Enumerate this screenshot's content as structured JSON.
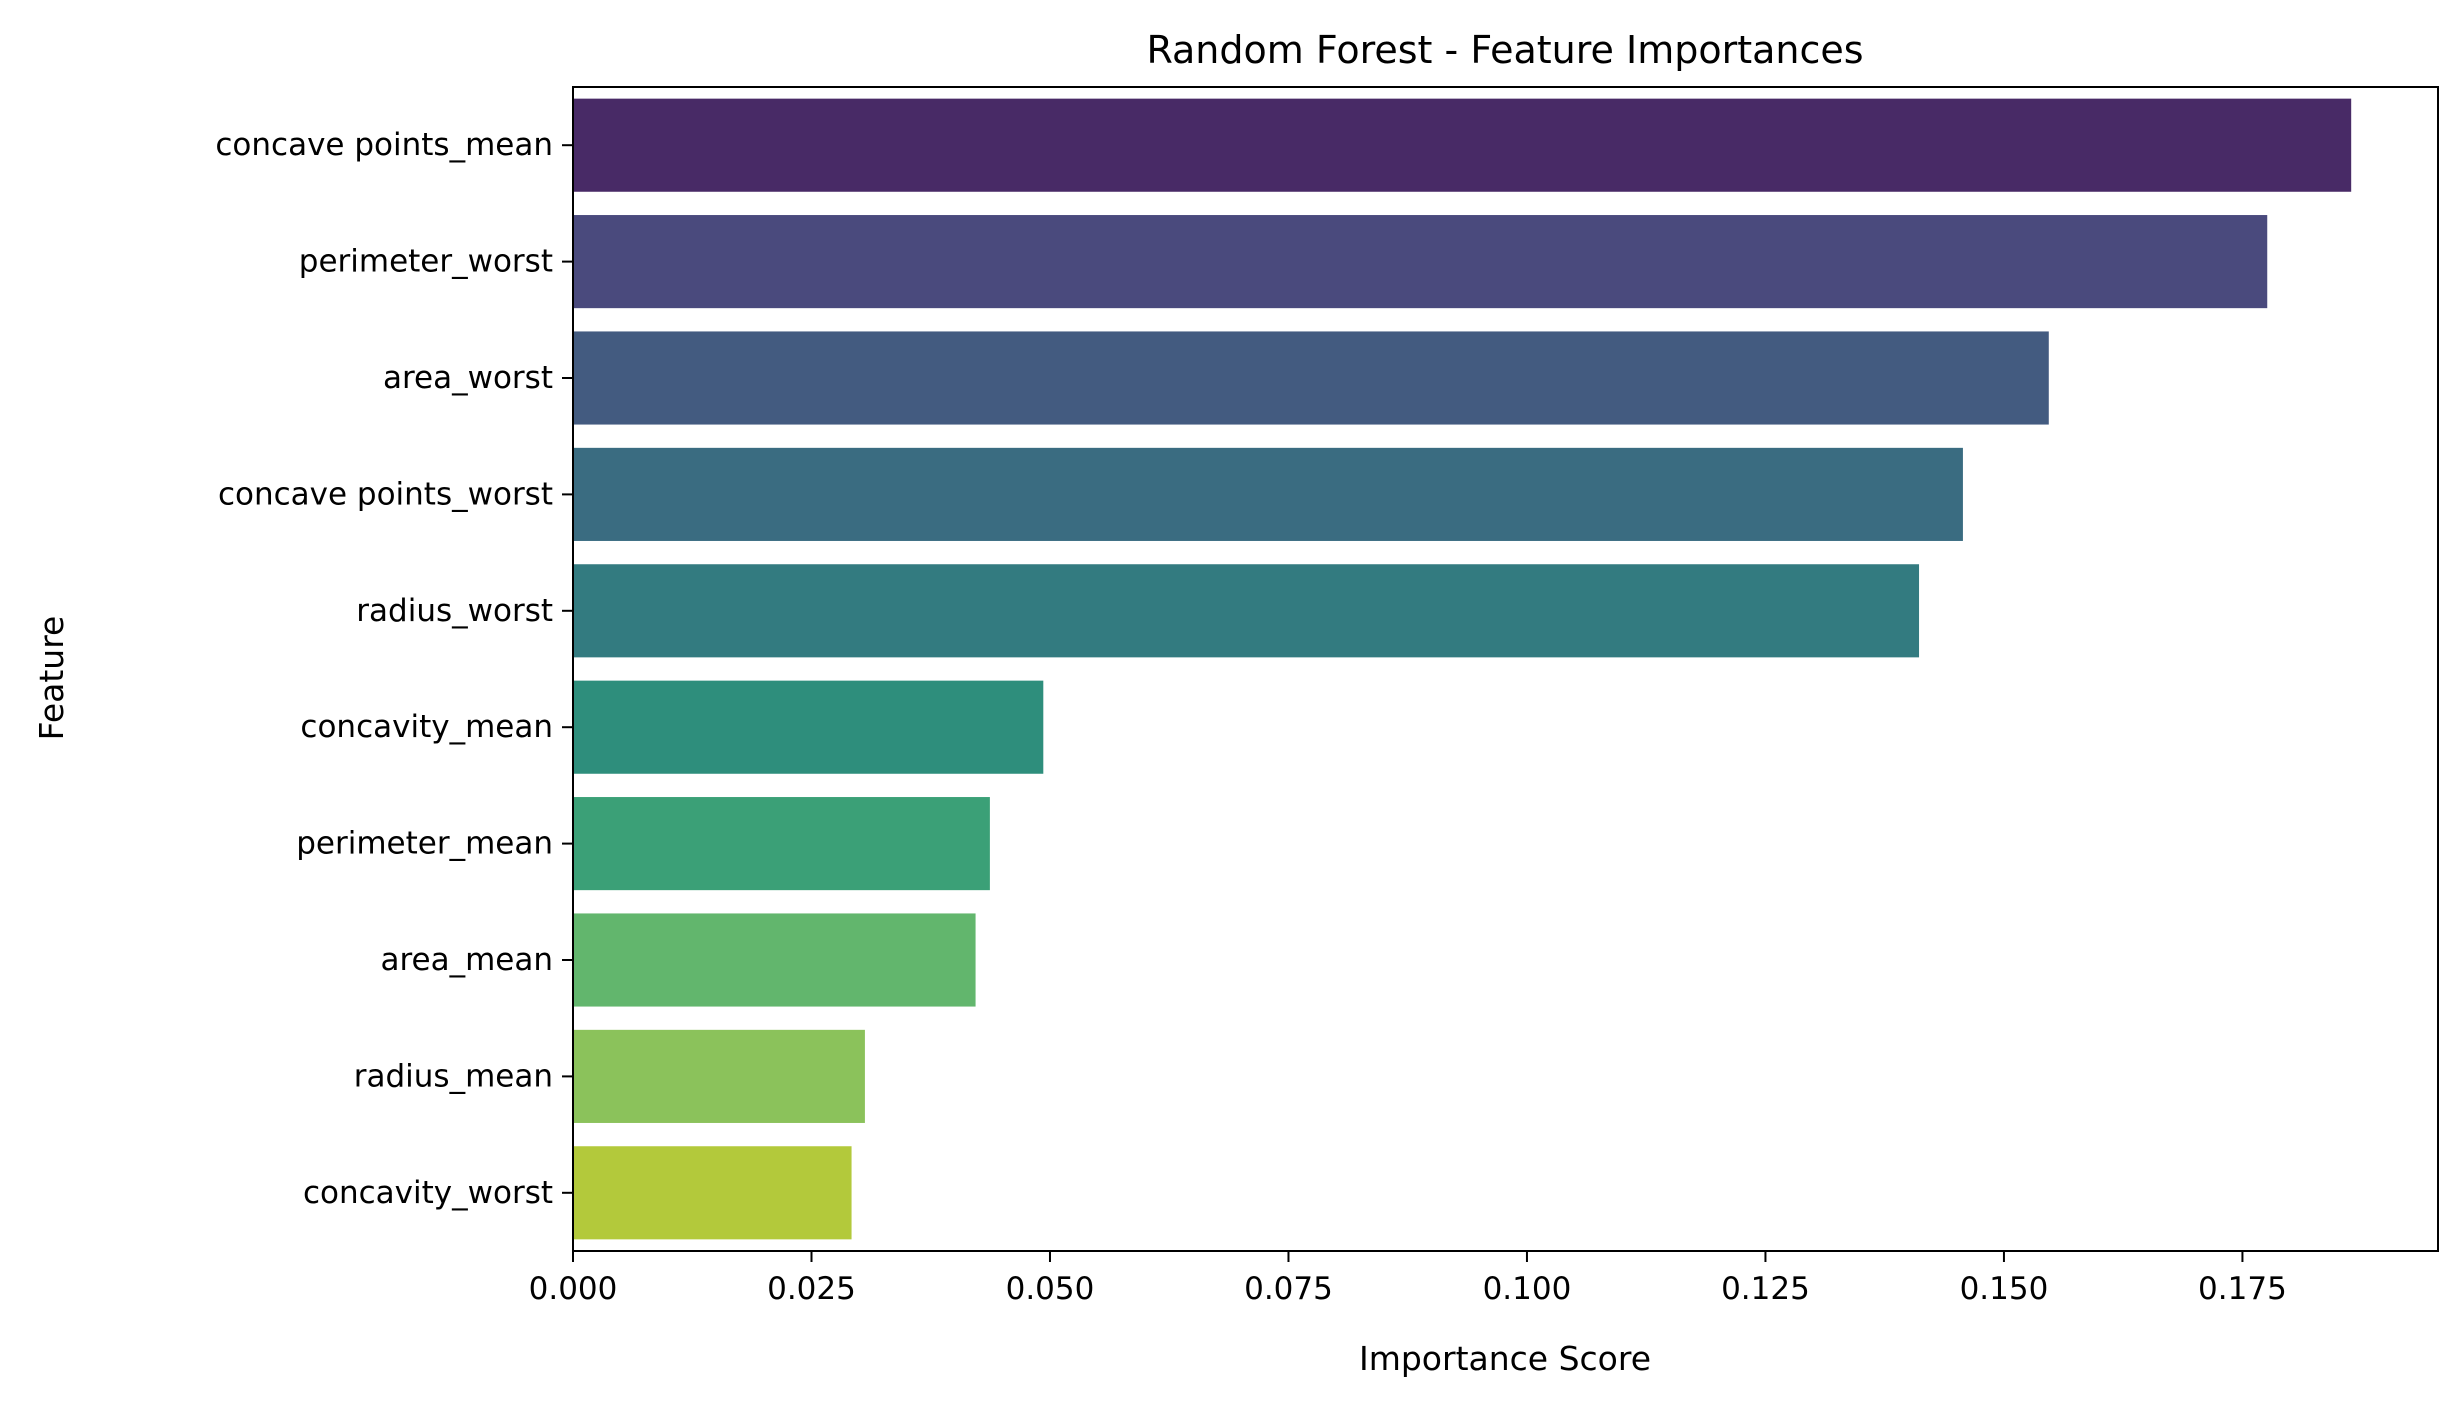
{
  "chart_data": {
    "type": "bar",
    "orientation": "horizontal",
    "title": "Random Forest - Feature Importances",
    "xlabel": "Importance Score",
    "ylabel": "Feature",
    "xlim": [
      0.0,
      0.1955
    ],
    "grid": false,
    "legend": "none",
    "x_ticks": [
      0.0,
      0.025,
      0.05,
      0.075,
      0.1,
      0.125,
      0.15,
      0.175
    ],
    "x_tick_labels": [
      "0.000",
      "0.025",
      "0.050",
      "0.075",
      "0.100",
      "0.125",
      "0.150",
      "0.175"
    ],
    "categories": [
      "concave points_mean",
      "perimeter_worst",
      "area_worst",
      "concave points_worst",
      "radius_worst",
      "concavity_mean",
      "perimeter_mean",
      "area_mean",
      "radius_mean",
      "concavity_worst"
    ],
    "values": [
      0.1864,
      0.1776,
      0.1547,
      0.1457,
      0.1411,
      0.0493,
      0.0437,
      0.0422,
      0.0306,
      0.0292
    ],
    "colors": [
      "#482a66",
      "#4a4a7d",
      "#435b80",
      "#3a6c81",
      "#337b80",
      "#2e8e7c",
      "#3ba077",
      "#62b66d",
      "#8bc25b",
      "#b3c93b"
    ]
  }
}
